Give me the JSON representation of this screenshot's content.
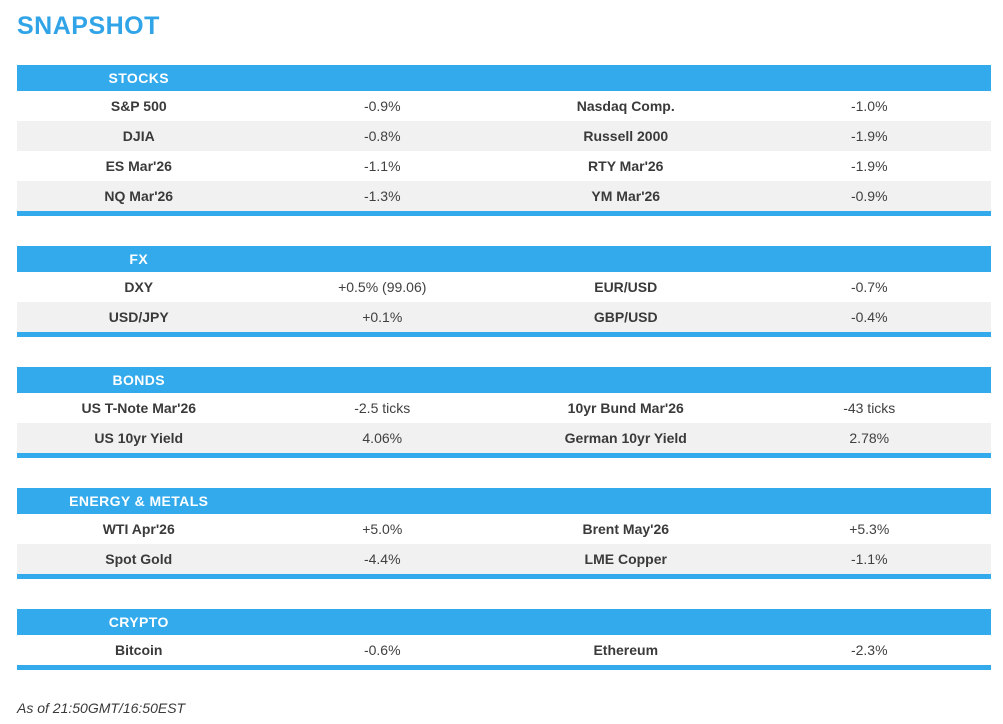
{
  "page_title": "SNAPSHOT",
  "footer_note": "As of 21:50GMT/16:50EST",
  "colors": {
    "accent_blue": "#32aaec",
    "title_blue": "#31a4e8",
    "row_alt_gray": "#f1f1f2",
    "text_dark": "#3a3a3b"
  },
  "sections": [
    {
      "title": "STOCKS",
      "rows": [
        {
          "l_label": "S&P 500",
          "l_value": "-0.9%",
          "r_label": "Nasdaq Comp.",
          "r_value": "-1.0%"
        },
        {
          "l_label": "DJIA",
          "l_value": "-0.8%",
          "r_label": "Russell 2000",
          "r_value": "-1.9%"
        },
        {
          "l_label": "ES Mar'26",
          "l_value": "-1.1%",
          "r_label": "RTY Mar'26",
          "r_value": "-1.9%"
        },
        {
          "l_label": "NQ Mar'26",
          "l_value": "-1.3%",
          "r_label": "YM Mar'26",
          "r_value": "-0.9%"
        }
      ]
    },
    {
      "title": "FX",
      "rows": [
        {
          "l_label": "DXY",
          "l_value": "+0.5% (99.06)",
          "r_label": "EUR/USD",
          "r_value": "-0.7%"
        },
        {
          "l_label": "USD/JPY",
          "l_value": "+0.1%",
          "r_label": "GBP/USD",
          "r_value": "-0.4%"
        }
      ]
    },
    {
      "title": "BONDS",
      "rows": [
        {
          "l_label": "US T-Note Mar'26",
          "l_value": "-2.5 ticks",
          "r_label": "10yr Bund Mar'26",
          "r_value": "-43 ticks"
        },
        {
          "l_label": "US 10yr Yield",
          "l_value": "4.06%",
          "r_label": "German 10yr Yield",
          "r_value": "2.78%"
        }
      ]
    },
    {
      "title": "ENERGY & METALS",
      "rows": [
        {
          "l_label": "WTI Apr'26",
          "l_value": "+5.0%",
          "r_label": "Brent May'26",
          "r_value": "+5.3%"
        },
        {
          "l_label": "Spot Gold",
          "l_value": "-4.4%",
          "r_label": "LME Copper",
          "r_value": "-1.1%"
        }
      ]
    },
    {
      "title": "CRYPTO",
      "rows": [
        {
          "l_label": "Bitcoin",
          "l_value": "-0.6%",
          "r_label": "Ethereum",
          "r_value": "-2.3%"
        }
      ]
    }
  ]
}
